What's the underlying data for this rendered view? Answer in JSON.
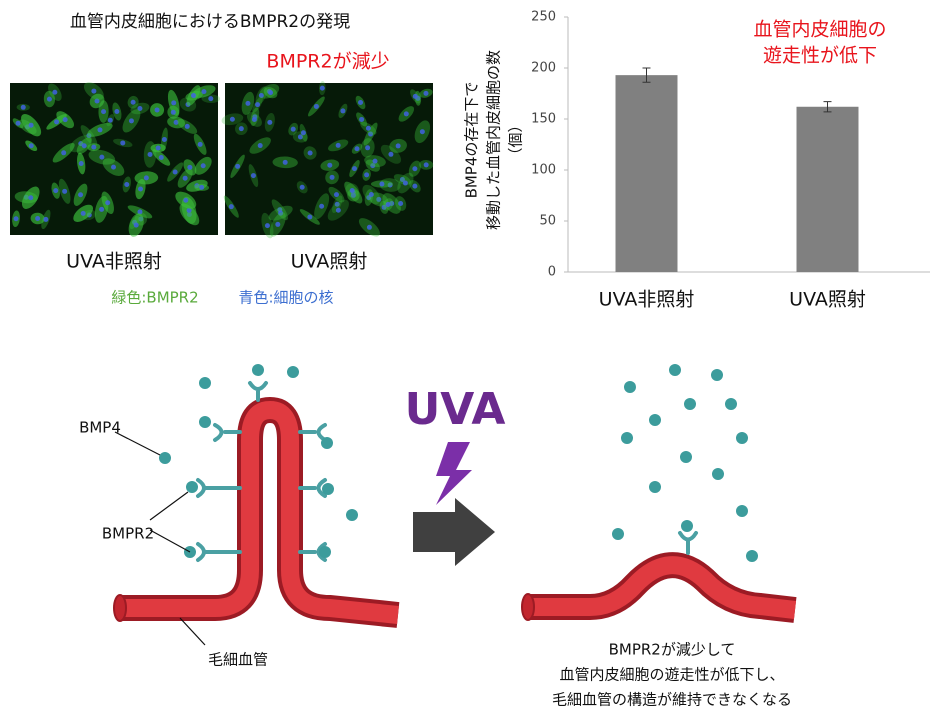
{
  "header": {
    "title": "血管内皮細胞におけるBMPR2の発現",
    "annotation": "BMPR2が減少"
  },
  "images": [
    {
      "label": "UVA非照射"
    },
    {
      "label": "UVA照射"
    }
  ],
  "legend": [
    "緑色:BMPR2",
    "青色:細胞の核"
  ],
  "chart_data": {
    "type": "bar",
    "y_label": [
      "BMP4の存在下で",
      "移動した血管内皮細胞の数",
      "（個）"
    ],
    "annotation": [
      "血管内皮細胞の",
      "遊走性が低下"
    ],
    "categories": [
      "UVA非照射",
      "UVA照射"
    ],
    "values": [
      193,
      162
    ],
    "errors": [
      7,
      5
    ],
    "color": "#808080",
    "ylim": [
      0,
      250
    ],
    "yticks": [
      0,
      50,
      100,
      150,
      200,
      250
    ],
    "grid": false
  },
  "diagram": {
    "uva": "UVA",
    "labels": {
      "ligand": "BMP4",
      "receptor": "BMPR2",
      "vessel": "毛細血管"
    },
    "caption": [
      "BMPR2が減少して",
      "血管内皮細胞の遊走性が低下し、",
      "毛細血管の構造が維持できなくなる"
    ]
  }
}
